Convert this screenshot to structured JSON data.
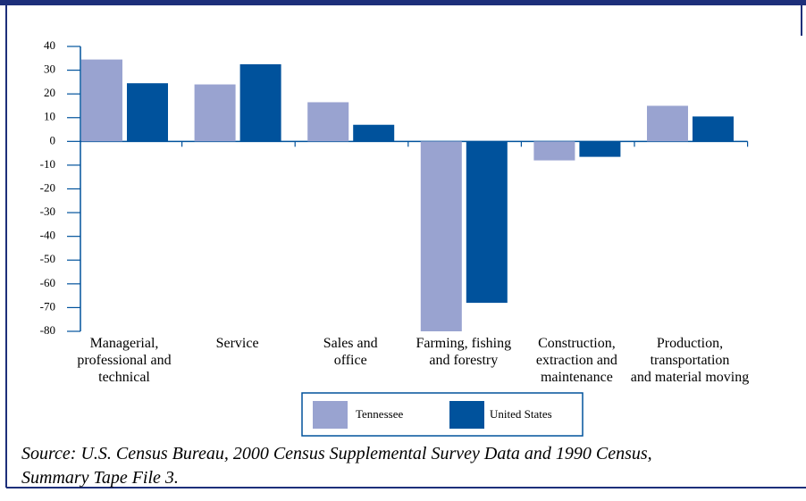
{
  "chart_data": {
    "type": "bar",
    "categories": [
      "Managerial,\nprofessional and\ntechnical",
      "Service",
      "Sales and\noffice",
      "Farming, fishing\nand forestry",
      "Construction,\nextraction and\nmaintenance",
      "Production,\ntransportation\nand material moving"
    ],
    "series": [
      {
        "name": "Tennessee",
        "color": "#99a3d0",
        "values": [
          34.5,
          24,
          16.5,
          -80,
          -8,
          15
        ]
      },
      {
        "name": "United States",
        "color": "#00529c",
        "values": [
          24.5,
          32.5,
          7,
          -68,
          -6.5,
          10.5
        ]
      }
    ],
    "ylim": [
      -80,
      40
    ],
    "yticks": [
      -80,
      -70,
      -60,
      -50,
      -40,
      -30,
      -20,
      -10,
      0,
      10,
      20,
      30,
      40
    ],
    "source": [
      "Source: U.S. Census Bureau, 2000 Census Supplemental Survey Data and 1990 Census,",
      "Summary Tape File 3."
    ]
  }
}
